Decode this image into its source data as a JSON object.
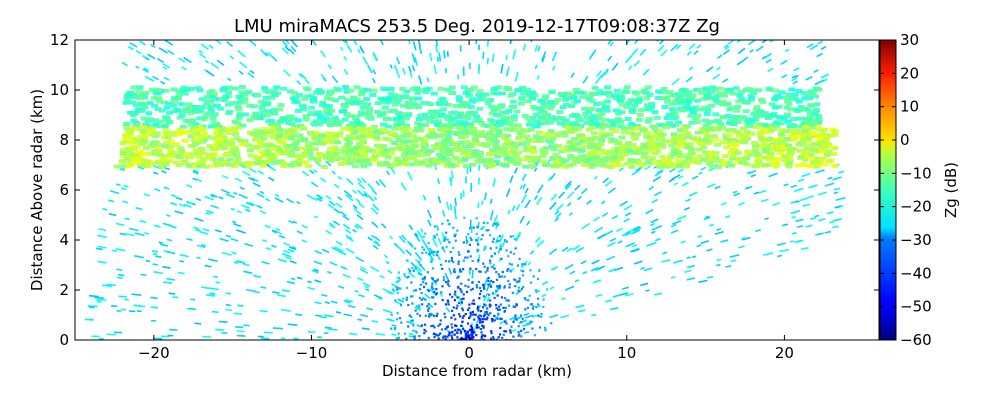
{
  "chart_data": {
    "type": "heatmap",
    "title": "LMU miraMACS 253.5 Deg. 2019-12-17T09:08:37Z  Zg",
    "xlabel": "Distance from radar (km)",
    "ylabel": "Distance Above radar  (km)",
    "xlim": [
      -25,
      26
    ],
    "ylim": [
      0,
      12
    ],
    "x_ticks": [
      -20,
      -10,
      0,
      10,
      20
    ],
    "y_ticks": [
      0,
      2,
      4,
      6,
      8,
      10,
      12
    ],
    "grid": false,
    "colorbar": {
      "label": "Zg (dB)",
      "range": [
        -60,
        30
      ],
      "ticks": [
        -60,
        -50,
        -40,
        -30,
        -20,
        -10,
        0,
        10,
        20,
        30
      ],
      "colormap": "jet"
    },
    "scan_sector": {
      "left_edge": [
        [
          -24,
          0.5
        ],
        [
          -21.5,
          12
        ]
      ],
      "right_edge": [
        [
          22.7,
          12
        ],
        [
          24,
          4.2
        ]
      ],
      "lower_right_edge": [
        [
          3,
          0
        ],
        [
          24,
          4.2
        ]
      ]
    },
    "layers": [
      {
        "name": "cloud_layer_core",
        "y_range": [
          7,
          8.6
        ],
        "x_range": [
          -23,
          23
        ],
        "zg_db": -10
      },
      {
        "name": "cloud_layer_upper",
        "y_range": [
          8.6,
          10.2
        ],
        "x_range": [
          -22,
          22
        ],
        "zg_db": -20
      },
      {
        "name": "sparse_echo_field",
        "y_range": [
          0,
          12
        ],
        "zg_db": -28
      },
      {
        "name": "near_radar_weak_echo",
        "center": [
          0,
          0.6
        ],
        "zg_db": -48
      }
    ]
  }
}
